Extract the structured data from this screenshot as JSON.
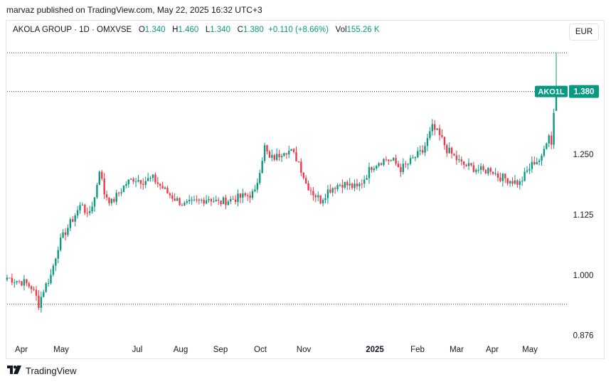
{
  "header": {
    "publisher": "marvaz published on TradingView.com, May 22, 2025 16:32 UTC+3"
  },
  "legend": {
    "symbol": "AKOLA GROUP · 1D · OMXVSE",
    "o_label": "O",
    "o_value": "1.340",
    "h_label": "H",
    "h_value": "1.460",
    "l_label": "L",
    "l_value": "1.340",
    "c_label": "C",
    "c_value": "1.380",
    "change": "+0.110 (+8.66%)",
    "vol_label": "Vol",
    "vol_value": "155.26 K"
  },
  "currency": "EUR",
  "price_tag": {
    "ticker": "AKO1L",
    "price": "1.380"
  },
  "footer": {
    "brand": "TradingView"
  },
  "colors": {
    "up": "#089981",
    "down": "#f23645",
    "text": "#131722",
    "border": "#e0e3eb",
    "dotted": "#363a45"
  },
  "chart_data": {
    "type": "candlestick",
    "y_axis": {
      "ticks": [
        0.876,
        1.0,
        1.125,
        1.25
      ],
      "tick_labels": [
        "0.876",
        "1.000",
        "1.125",
        "1.250"
      ],
      "range": [
        0.876,
        1.46
      ],
      "side": "right"
    },
    "x_axis": {
      "tick_labels": [
        "Apr",
        "May",
        "Jul",
        "Aug",
        "Sep",
        "Oct",
        "Nov",
        "2025",
        "Feb",
        "Mar",
        "Apr",
        "May"
      ]
    },
    "reference_lines": [
      1.46,
      1.38,
      0.94
    ],
    "grid": false,
    "last": {
      "open": 1.34,
      "high": 1.46,
      "low": 1.34,
      "close": 1.38
    },
    "price_path": [
      [
        0,
        0.995
      ],
      [
        3,
        0.99
      ],
      [
        7,
        0.985
      ],
      [
        10,
        0.975
      ],
      [
        12,
        0.955
      ],
      [
        13,
        0.94
      ],
      [
        15,
        0.97
      ],
      [
        18,
        1.0
      ],
      [
        21,
        1.06
      ],
      [
        24,
        1.09
      ],
      [
        28,
        1.125
      ],
      [
        31,
        1.15
      ],
      [
        33,
        1.12
      ],
      [
        36,
        1.16
      ],
      [
        38,
        1.22
      ],
      [
        40,
        1.17
      ],
      [
        43,
        1.15
      ],
      [
        46,
        1.17
      ],
      [
        49,
        1.19
      ],
      [
        52,
        1.2
      ],
      [
        56,
        1.195
      ],
      [
        60,
        1.2
      ],
      [
        63,
        1.185
      ],
      [
        66,
        1.17
      ],
      [
        70,
        1.155
      ],
      [
        73,
        1.145
      ],
      [
        77,
        1.15
      ],
      [
        80,
        1.155
      ],
      [
        83,
        1.16
      ],
      [
        87,
        1.15
      ],
      [
        91,
        1.155
      ],
      [
        95,
        1.16
      ],
      [
        99,
        1.165
      ],
      [
        102,
        1.17
      ],
      [
        104,
        1.22
      ],
      [
        106,
        1.265
      ],
      [
        108,
        1.24
      ],
      [
        111,
        1.245
      ],
      [
        114,
        1.26
      ],
      [
        117,
        1.255
      ],
      [
        120,
        1.235
      ],
      [
        123,
        1.19
      ],
      [
        126,
        1.17
      ],
      [
        129,
        1.155
      ],
      [
        132,
        1.175
      ],
      [
        135,
        1.185
      ],
      [
        138,
        1.19
      ],
      [
        141,
        1.185
      ],
      [
        144,
        1.18
      ],
      [
        147,
        1.2
      ],
      [
        150,
        1.225
      ],
      [
        153,
        1.235
      ],
      [
        156,
        1.24
      ],
      [
        159,
        1.235
      ],
      [
        162,
        1.22
      ],
      [
        165,
        1.23
      ],
      [
        168,
        1.245
      ],
      [
        171,
        1.255
      ],
      [
        173,
        1.28
      ],
      [
        175,
        1.305
      ],
      [
        177,
        1.295
      ],
      [
        179,
        1.28
      ],
      [
        181,
        1.26
      ],
      [
        184,
        1.245
      ],
      [
        187,
        1.23
      ],
      [
        190,
        1.225
      ],
      [
        193,
        1.22
      ],
      [
        196,
        1.215
      ],
      [
        199,
        1.22
      ],
      [
        202,
        1.205
      ],
      [
        205,
        1.2
      ],
      [
        208,
        1.195
      ],
      [
        211,
        1.19
      ],
      [
        214,
        1.215
      ],
      [
        217,
        1.235
      ],
      [
        220,
        1.24
      ],
      [
        222,
        1.28
      ],
      [
        223,
        1.295
      ],
      [
        224,
        1.27
      ],
      [
        225,
        1.34
      ],
      [
        226,
        1.38
      ]
    ],
    "candle_count": 227
  }
}
